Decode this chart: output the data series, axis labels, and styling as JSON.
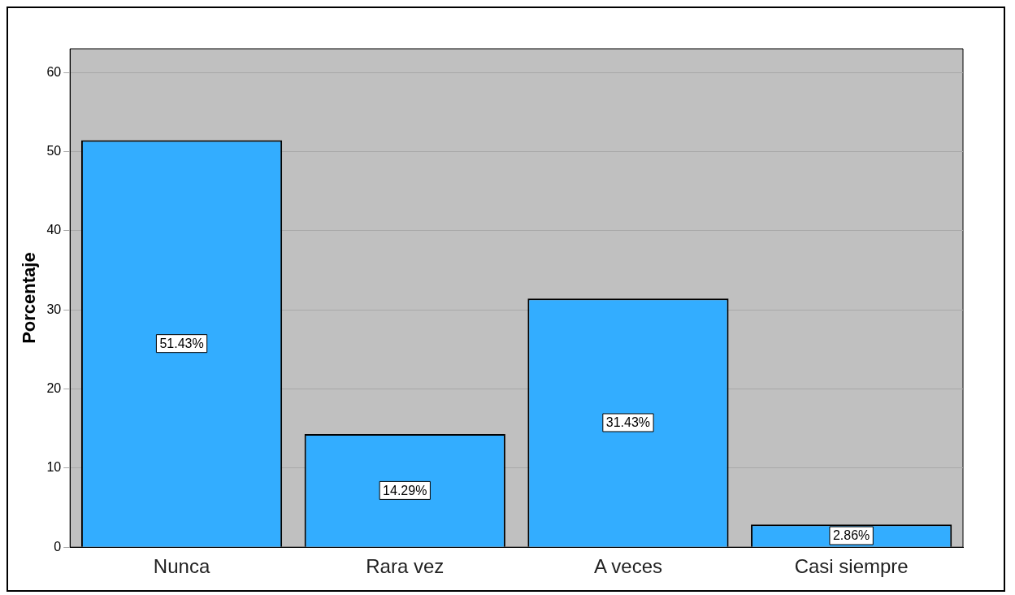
{
  "chart_data": {
    "type": "bar",
    "ylabel": "Porcentaje",
    "categories": [
      "Nunca",
      "Rara vez",
      "A veces",
      "Casi siempre"
    ],
    "values": [
      51.43,
      14.29,
      31.43,
      2.86
    ],
    "value_labels": [
      "51.43%",
      "14.29%",
      "31.43%",
      "2.86%"
    ],
    "color": "#33adff",
    "ylim": [
      0,
      63
    ],
    "yticks": [
      0,
      10,
      20,
      30,
      40,
      50,
      60
    ],
    "grid": "y",
    "legend": false
  }
}
